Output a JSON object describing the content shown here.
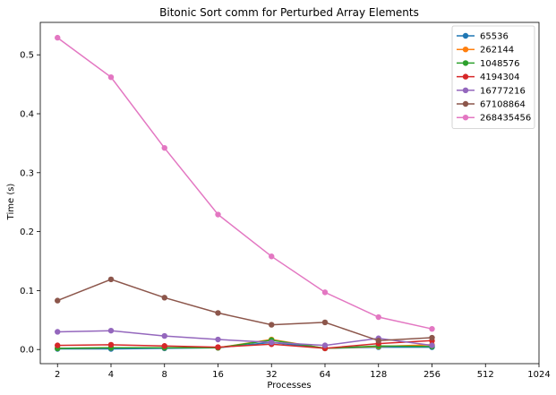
{
  "chart_data": {
    "type": "line",
    "title": "Bitonic Sort comm for Perturbed Array Elements",
    "xlabel": "Processes",
    "ylabel": "Time (s)",
    "x_scale": "log2",
    "x_ticks": [
      "2",
      "4",
      "8",
      "16",
      "32",
      "64",
      "128",
      "256",
      "512",
      "1024"
    ],
    "x": [
      2,
      4,
      8,
      16,
      32,
      64,
      128,
      256
    ],
    "xlim": [
      1.6,
      1024
    ],
    "y_ticks": [
      "0.0",
      "0.1",
      "0.2",
      "0.3",
      "0.4",
      "0.5"
    ],
    "ylim": [
      -0.024,
      0.555
    ],
    "grid": false,
    "legend_position": "top-right",
    "series": [
      {
        "name": "65536",
        "color": "#1f77b4",
        "values": [
          0.001,
          0.001,
          0.002,
          0.003,
          0.012,
          0.002,
          0.004,
          0.004
        ]
      },
      {
        "name": "262144",
        "color": "#ff7f0e",
        "values": [
          0.002,
          0.003,
          0.003,
          0.003,
          0.017,
          0.002,
          0.005,
          0.008
        ]
      },
      {
        "name": "1048576",
        "color": "#2ca02c",
        "values": [
          0.002,
          0.003,
          0.003,
          0.003,
          0.016,
          0.002,
          0.006,
          0.005
        ]
      },
      {
        "name": "4194304",
        "color": "#d62728",
        "values": [
          0.007,
          0.008,
          0.006,
          0.004,
          0.009,
          0.002,
          0.01,
          0.015
        ]
      },
      {
        "name": "16777216",
        "color": "#9467bd",
        "values": [
          0.03,
          0.032,
          0.023,
          0.017,
          0.012,
          0.007,
          0.019,
          0.007
        ]
      },
      {
        "name": "67108864",
        "color": "#8c564b",
        "values": [
          0.083,
          0.119,
          0.088,
          0.062,
          0.042,
          0.046,
          0.015,
          0.02
        ]
      },
      {
        "name": "268435456",
        "color": "#e377c2",
        "values": [
          0.529,
          0.462,
          0.342,
          0.229,
          0.158,
          0.097,
          0.055,
          0.035
        ]
      }
    ]
  }
}
